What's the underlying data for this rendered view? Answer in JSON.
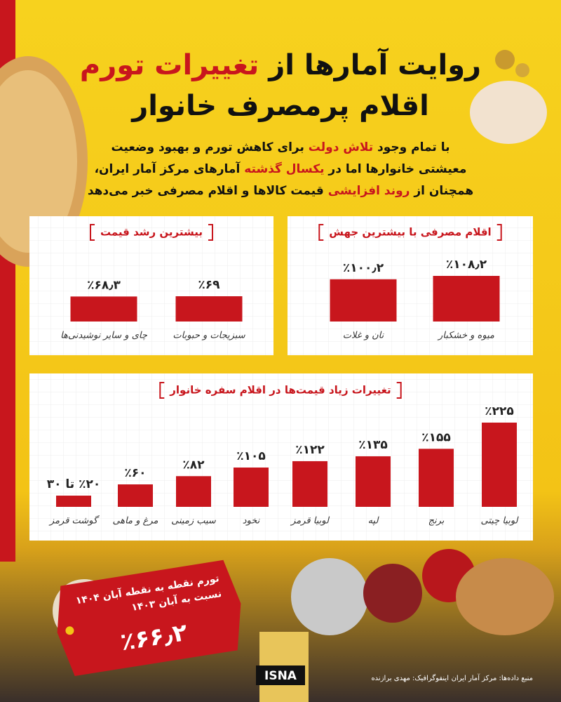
{
  "header": {
    "title_lines": [
      [
        {
          "text": "روایت آمارها از ",
          "color": "#111111"
        },
        {
          "text": "تغییرات تورم",
          "color": "#c8161d"
        }
      ],
      [
        {
          "text": "اقلام پرمصرف خانوار",
          "color": "#111111"
        }
      ]
    ],
    "intro_lines": [
      [
        {
          "text": "با تمام وجود ",
          "color": "#111111"
        },
        {
          "text": "تلاش دولت",
          "color": "#c8161d"
        },
        {
          "text": " برای کاهش تورم و بهبود وضعیت",
          "color": "#111111"
        }
      ],
      [
        {
          "text": "معیشتی خانوارها اما در ",
          "color": "#111111"
        },
        {
          "text": "یکسال گذشته",
          "color": "#c8161d"
        },
        {
          "text": " آمارهای مرکز آمار ایران،",
          "color": "#111111"
        }
      ],
      [
        {
          "text": "همچنان از ",
          "color": "#111111"
        },
        {
          "text": "روند افزایشی",
          "color": "#c8161d"
        },
        {
          "text": " قیمت کالاها و اقلام مصرفی خبر می‌دهد",
          "color": "#111111"
        }
      ]
    ]
  },
  "chart_data": [
    {
      "type": "bar",
      "title": "اقلام مصرفی با بیشترین جهش",
      "categories": [
        "میوه و خشکبار",
        "نان و غلات"
      ],
      "values": [
        108.2,
        100.2
      ],
      "value_labels": [
        "٪۱۰۸٫۲",
        "٪۱۰۰٫۲"
      ],
      "color": "#c8161d"
    },
    {
      "type": "bar",
      "title": "بیشترین رشد قیمت",
      "categories": [
        "سبزیجات و حبوبات",
        "چای و سایر نوشیدنی‌ها"
      ],
      "values": [
        69,
        68.3
      ],
      "value_labels": [
        "٪۶۹",
        "٪۶۸٫۳"
      ],
      "color": "#c8161d"
    },
    {
      "type": "bar",
      "title": "تغییرات زیاد قیمت‌ها در اقلام سفره خانوار",
      "categories": [
        "لوبیا چیتی",
        "برنج",
        "لپه",
        "لوبیا قرمز",
        "نخود",
        "سیب زمینی",
        "مرغ و ماهی",
        "گوشت قرمز"
      ],
      "values": [
        225,
        155,
        135,
        122,
        105,
        82,
        60,
        30
      ],
      "value_labels": [
        "٪۲۲۵",
        "٪۱۵۵",
        "٪۱۳۵",
        "٪۱۲۲",
        "٪۱۰۵",
        "٪۸۲",
        "٪۶۰",
        "٪۲۰ تا ۳۰"
      ],
      "color": "#c8161d"
    }
  ],
  "callout": {
    "lines": [
      "تورم نقطه به نقطه آبان ۱۴۰۴",
      "نسبت به آبان ۱۴۰۳"
    ],
    "value": "٪۶۶٫۲"
  },
  "footer": {
    "brand": "ISNA",
    "source": "منبع داده‌ها: مرکز آمار ایران",
    "credit": "اینفوگرافیک: مهدی برازنده"
  }
}
